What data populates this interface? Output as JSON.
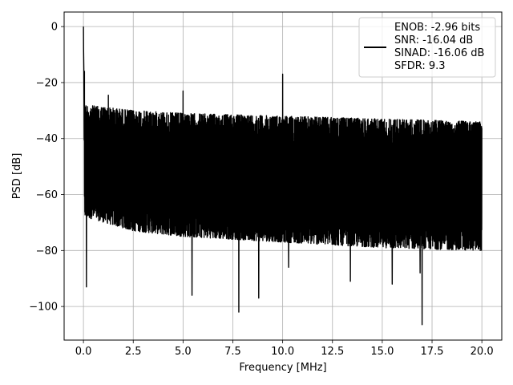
{
  "chart_data": {
    "type": "line",
    "title": "",
    "xlabel": "Frequency [MHz]",
    "ylabel": "PSD [dB]",
    "xlim": [
      -0.97,
      21.0
    ],
    "ylim": [
      -112.0,
      5.2
    ],
    "grid": true,
    "x_ticks": [
      0.0,
      2.5,
      5.0,
      7.5,
      10.0,
      12.5,
      15.0,
      17.5,
      20.0
    ],
    "x_tick_labels": [
      "0.0",
      "2.5",
      "5.0",
      "7.5",
      "10.0",
      "12.5",
      "15.0",
      "17.5",
      "20.0"
    ],
    "y_ticks": [
      0,
      -20,
      -40,
      -60,
      -80,
      -100
    ],
    "y_tick_labels": [
      "0",
      "−20",
      "−40",
      "−60",
      "−80",
      "−100"
    ],
    "legend_position": "top-right",
    "legend": [
      "ENOB: -2.96 bits",
      "SNR: -16.04 dB",
      "SINAD: -16.06 dB",
      "SFDR: 9.3"
    ],
    "series": [
      {
        "color": "#000000",
        "x_range": [
          0.0,
          20.0
        ],
        "noise_floor": {
          "upper_envelope": [
            [
              0.1,
              -28
            ],
            [
              2.5,
              -30
            ],
            [
              5.0,
              -31
            ],
            [
              10.0,
              -32
            ],
            [
              15.0,
              -33
            ],
            [
              20.0,
              -34
            ]
          ],
          "lower_envelope": [
            [
              0.1,
              -68
            ],
            [
              2.5,
              -73
            ],
            [
              5.0,
              -75
            ],
            [
              10.0,
              -77
            ],
            [
              15.0,
              -79
            ],
            [
              20.0,
              -80
            ]
          ]
        },
        "peaks": [
          {
            "x": 0.0,
            "y": 0
          },
          {
            "x": 0.05,
            "y": -16
          },
          {
            "x": 1.25,
            "y": -24.5
          },
          {
            "x": 5.0,
            "y": -23
          },
          {
            "x": 10.0,
            "y": -17
          }
        ],
        "dips": [
          {
            "x": 0.15,
            "y": -93
          },
          {
            "x": 5.45,
            "y": -96
          },
          {
            "x": 7.8,
            "y": -102
          },
          {
            "x": 8.8,
            "y": -97
          },
          {
            "x": 10.3,
            "y": -86
          },
          {
            "x": 13.4,
            "y": -91
          },
          {
            "x": 15.5,
            "y": -92
          },
          {
            "x": 16.9,
            "y": -88
          },
          {
            "x": 17.0,
            "y": -106.5
          }
        ]
      }
    ]
  }
}
